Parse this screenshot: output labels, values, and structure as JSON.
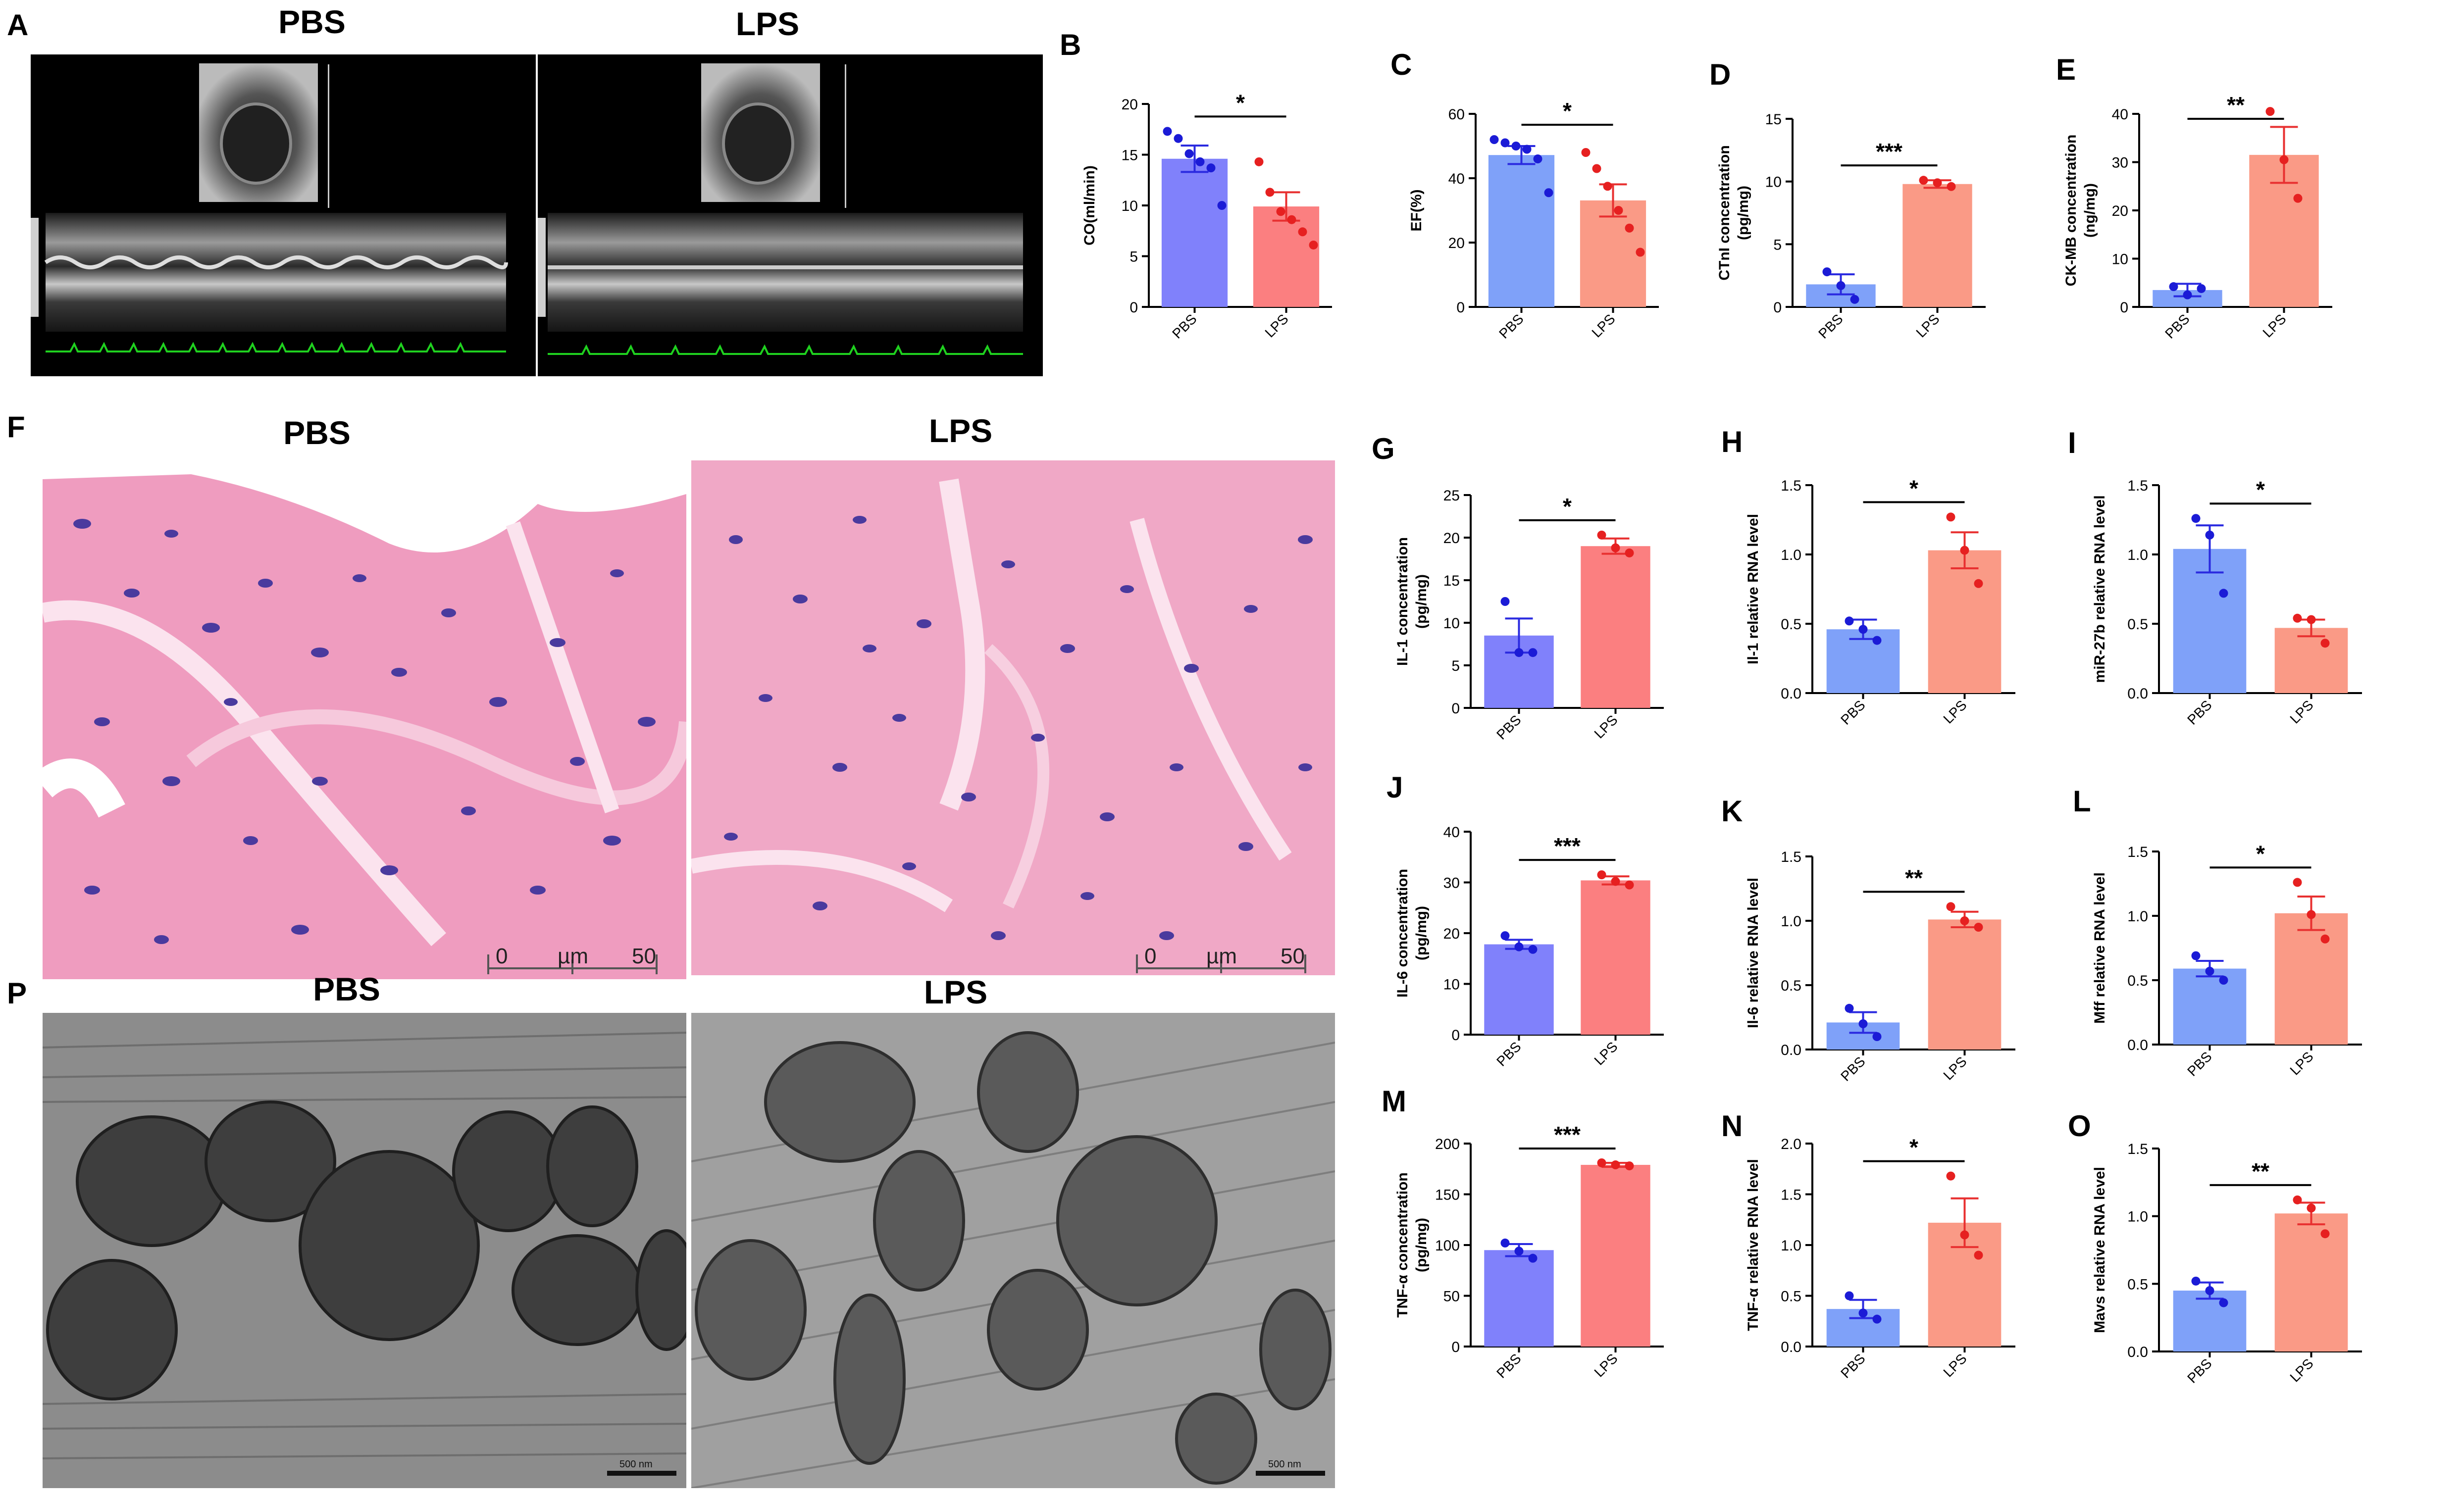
{
  "panel_letters": {
    "A": "A",
    "B": "B",
    "C": "C",
    "D": "D",
    "E": "E",
    "F": "F",
    "G": "G",
    "H": "H",
    "I": "I",
    "J": "J",
    "K": "K",
    "L": "L",
    "M": "M",
    "N": "N",
    "O": "O",
    "P": "P"
  },
  "image_panels": {
    "echo_pbs_title": "PBS",
    "echo_lps_title": "LPS",
    "he_pbs_title": "PBS",
    "he_lps_title": "LPS",
    "tem_pbs_title": "PBS",
    "tem_lps_title": "LPS",
    "he_scale_start": "0",
    "he_scale_unit": "µm",
    "he_scale_end": "50",
    "tem_scale_label": "500 nm",
    "echo_colors": {
      "background": "#000000",
      "ecg_trace": "#1fd11f"
    },
    "he_colors": {
      "background": "#efa5c5",
      "fiber": "#e77aa5",
      "nucleus": "#4a3a9e"
    },
    "tem_colors": {
      "background": "#8a8a8a",
      "mitochondria": "#3e3e3e"
    }
  },
  "colors": {
    "pbs_fill": "#8081fb",
    "pbs_fill_light": "#7fa1f9",
    "pbs_dot": "#1b1bd6",
    "lps_fill": "#fb7f80",
    "lps_fill_light": "#fa9a86",
    "lps_dot": "#e62020"
  },
  "chart_data": [
    {
      "id": "B",
      "type": "bar",
      "categories": [
        "PBS",
        "LPS"
      ],
      "ylabel": "CO(ml/min)",
      "ylim": [
        0,
        20
      ],
      "yticks": [
        0,
        5,
        10,
        15,
        20
      ],
      "series": [
        {
          "values": [
            14.6,
            9.9
          ],
          "errors": [
            1.3,
            1.4
          ],
          "points": [
            [
              17.3,
              16.6,
              15.1,
              14.3,
              13.7,
              10.0
            ],
            [
              14.3,
              11.3,
              9.4,
              8.6,
              7.4,
              6.1
            ]
          ]
        }
      ],
      "significance": "*",
      "shade": "dark"
    },
    {
      "id": "C",
      "type": "bar",
      "categories": [
        "PBS",
        "LPS"
      ],
      "ylabel": "EF(%)",
      "ylim": [
        0,
        60
      ],
      "yticks": [
        0,
        20,
        40,
        60
      ],
      "series": [
        {
          "values": [
            47.2,
            33.1
          ],
          "errors": [
            2.8,
            5.0
          ],
          "points": [
            [
              52.0,
              51.0,
              50.0,
              49.0,
              46.0,
              35.5
            ],
            [
              48.0,
              43.0,
              37.5,
              30.0,
              24.5,
              17.0
            ]
          ]
        }
      ],
      "significance": "*",
      "shade": "light"
    },
    {
      "id": "D",
      "type": "bar",
      "categories": [
        "PBS",
        "LPS"
      ],
      "ylabel": "CTnI concentration\n(pg/mg)",
      "ylim": [
        0,
        15
      ],
      "yticks": [
        0,
        5,
        10,
        15
      ],
      "series": [
        {
          "values": [
            1.8,
            9.8
          ],
          "errors": [
            0.8,
            0.3
          ],
          "points": [
            [
              2.8,
              1.7,
              0.6
            ],
            [
              10.1,
              9.9,
              9.6
            ]
          ]
        }
      ],
      "significance": "***",
      "shade": "light"
    },
    {
      "id": "E",
      "type": "bar",
      "categories": [
        "PBS",
        "LPS"
      ],
      "ylabel": "CK-MB concentration\n(ng/mg)",
      "ylim": [
        0,
        40
      ],
      "yticks": [
        0,
        10,
        20,
        30,
        40
      ],
      "series": [
        {
          "values": [
            3.5,
            31.5
          ],
          "errors": [
            1.3,
            5.8
          ],
          "points": [
            [
              4.2,
              2.5,
              3.8
            ],
            [
              40.5,
              30.5,
              22.5
            ]
          ]
        }
      ],
      "significance": "**",
      "shade": "light"
    },
    {
      "id": "G",
      "type": "bar",
      "categories": [
        "PBS",
        "LPS"
      ],
      "ylabel": "IL-1 concentration\n(pg/mg)",
      "ylim": [
        0,
        25
      ],
      "yticks": [
        0,
        5,
        10,
        15,
        20,
        25
      ],
      "series": [
        {
          "values": [
            8.5,
            19.0
          ],
          "errors": [
            2.0,
            0.9
          ],
          "points": [
            [
              12.5,
              6.5,
              6.5
            ],
            [
              20.3,
              18.8,
              18.2
            ]
          ]
        }
      ],
      "significance": "*",
      "shade": "dark"
    },
    {
      "id": "H",
      "type": "bar",
      "categories": [
        "PBS",
        "LPS"
      ],
      "ylabel": "Il-1 relative RNA level",
      "ylim": [
        0,
        1.5
      ],
      "yticks": [
        0.0,
        0.5,
        1.0,
        1.5
      ],
      "series": [
        {
          "values": [
            0.46,
            1.03
          ],
          "errors": [
            0.07,
            0.13
          ],
          "points": [
            [
              0.52,
              0.46,
              0.38
            ],
            [
              1.27,
              1.03,
              0.79
            ]
          ]
        }
      ],
      "significance": "*",
      "shade": "light"
    },
    {
      "id": "I",
      "type": "bar",
      "categories": [
        "PBS",
        "LPS"
      ],
      "ylabel": "miR-27b relative RNA level",
      "ylim": [
        0,
        1.5
      ],
      "yticks": [
        0.0,
        0.5,
        1.0,
        1.5
      ],
      "series": [
        {
          "values": [
            1.04,
            0.47
          ],
          "errors": [
            0.17,
            0.06
          ],
          "points": [
            [
              1.26,
              1.14,
              0.72
            ],
            [
              0.54,
              0.53,
              0.36
            ]
          ]
        }
      ],
      "significance": "*",
      "shade": "light"
    },
    {
      "id": "J",
      "type": "bar",
      "categories": [
        "PBS",
        "LPS"
      ],
      "ylabel": "IL-6 concentration\n(pg/mg)",
      "ylim": [
        0,
        40
      ],
      "yticks": [
        0,
        10,
        20,
        30,
        40
      ],
      "series": [
        {
          "values": [
            17.8,
            30.4
          ],
          "errors": [
            0.9,
            0.8
          ],
          "points": [
            [
              19.5,
              17.3,
              16.8
            ],
            [
              31.5,
              30.2,
              29.5
            ]
          ]
        }
      ],
      "significance": "***",
      "shade": "dark"
    },
    {
      "id": "K",
      "type": "bar",
      "categories": [
        "PBS",
        "LPS"
      ],
      "ylabel": "Il-6 relative RNA level",
      "ylim": [
        0,
        1.5
      ],
      "yticks": [
        0.0,
        0.5,
        1.0,
        1.5
      ],
      "series": [
        {
          "values": [
            0.21,
            1.01
          ],
          "errors": [
            0.08,
            0.06
          ],
          "points": [
            [
              0.32,
              0.2,
              0.1
            ],
            [
              1.11,
              1.0,
              0.95
            ]
          ]
        }
      ],
      "significance": "**",
      "shade": "light"
    },
    {
      "id": "L",
      "type": "bar",
      "categories": [
        "PBS",
        "LPS"
      ],
      "ylabel": "Mff relative RNA level",
      "ylim": [
        0,
        1.5
      ],
      "yticks": [
        0.0,
        0.5,
        1.0,
        1.5
      ],
      "series": [
        {
          "values": [
            0.59,
            1.02
          ],
          "errors": [
            0.06,
            0.13
          ],
          "points": [
            [
              0.69,
              0.57,
              0.5
            ],
            [
              1.26,
              1.01,
              0.82
            ]
          ]
        }
      ],
      "significance": "*",
      "shade": "light"
    },
    {
      "id": "M",
      "type": "bar",
      "categories": [
        "PBS",
        "LPS"
      ],
      "ylabel": "TNF-α concentration\n(pg/mg)",
      "ylim": [
        0,
        200
      ],
      "yticks": [
        0,
        50,
        100,
        150,
        200
      ],
      "series": [
        {
          "values": [
            95,
            179
          ],
          "errors": [
            6,
            2
          ],
          "points": [
            [
              102,
              94,
              87
            ],
            [
              181,
              179,
              178
            ]
          ]
        }
      ],
      "significance": "***",
      "shade": "dark"
    },
    {
      "id": "N",
      "type": "bar",
      "categories": [
        "PBS",
        "LPS"
      ],
      "ylabel": "TNF-α relative RNA level",
      "ylim": [
        0,
        2.0
      ],
      "yticks": [
        0.0,
        0.5,
        1.0,
        1.5,
        2.0
      ],
      "series": [
        {
          "values": [
            0.37,
            1.22
          ],
          "errors": [
            0.09,
            0.24
          ],
          "points": [
            [
              0.5,
              0.33,
              0.27
            ],
            [
              1.68,
              1.1,
              0.9
            ]
          ]
        }
      ],
      "significance": "*",
      "shade": "light"
    },
    {
      "id": "O",
      "type": "bar",
      "categories": [
        "PBS",
        "LPS"
      ],
      "ylabel": "Mavs relative RNA level",
      "ylim": [
        0,
        1.5
      ],
      "yticks": [
        0.0,
        0.5,
        1.0,
        1.5
      ],
      "series": [
        {
          "values": [
            0.45,
            1.02
          ],
          "errors": [
            0.06,
            0.08
          ],
          "points": [
            [
              0.52,
              0.45,
              0.36
            ],
            [
              1.12,
              1.06,
              0.87
            ]
          ]
        }
      ],
      "significance": "**",
      "shade": "light"
    }
  ]
}
